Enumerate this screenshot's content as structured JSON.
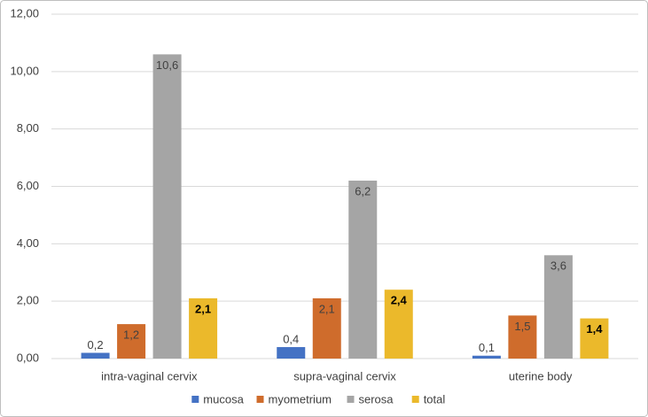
{
  "chart_data": {
    "type": "bar",
    "categories": [
      "intra-vaginal cervix",
      "supra-vaginal cervix",
      "uterine body"
    ],
    "series": [
      {
        "name": "mucosa",
        "color": "#4472c4",
        "values": [
          0.2,
          0.4,
          0.1
        ],
        "value_labels": [
          "0,2",
          "0,4",
          "0,1"
        ]
      },
      {
        "name": "myometrium",
        "color": "#cf6c2c",
        "values": [
          1.2,
          2.1,
          1.5
        ],
        "value_labels": [
          "1,2",
          "2,1",
          "1,5"
        ]
      },
      {
        "name": "serosa",
        "color": "#a5a5a5",
        "values": [
          10.6,
          6.2,
          3.6
        ],
        "value_labels": [
          "10,6",
          "6,2",
          "3,6"
        ]
      },
      {
        "name": "total",
        "color": "#ebb92b",
        "values": [
          2.1,
          2.4,
          1.4
        ],
        "value_labels": [
          "2,1",
          "2,4",
          "1,4"
        ]
      }
    ],
    "ylim": [
      0,
      12
    ],
    "yticks": [
      {
        "value": 0,
        "label": "0,00"
      },
      {
        "value": 2,
        "label": "2,00"
      },
      {
        "value": 4,
        "label": "4,00"
      },
      {
        "value": 6,
        "label": "6,00"
      },
      {
        "value": 8,
        "label": "8,00"
      },
      {
        "value": 10,
        "label": "10,00"
      },
      {
        "value": 12,
        "label": "12,00"
      }
    ],
    "grid": true
  }
}
